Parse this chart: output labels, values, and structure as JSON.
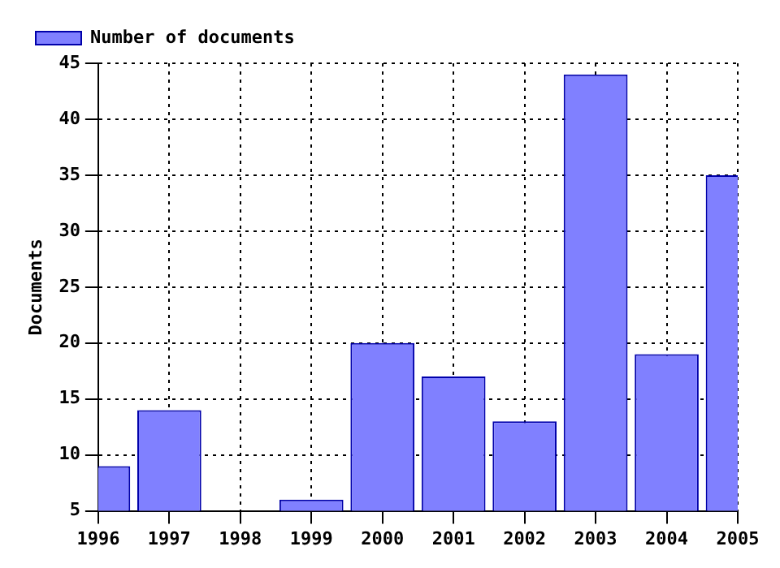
{
  "chart_data": {
    "type": "bar",
    "ylabel": "Documents",
    "x": [
      1996,
      1997,
      1998,
      1999,
      2000,
      2001,
      2002,
      2003,
      2004,
      2005
    ],
    "series": [
      {
        "name": "Number of documents",
        "color": "#8080ff",
        "values": [
          9,
          14,
          null,
          6,
          20,
          17,
          13,
          44,
          19,
          35
        ]
      }
    ],
    "xlim": [
      1996,
      2005
    ],
    "xticks": [
      1996,
      1997,
      1998,
      1999,
      2000,
      2001,
      2002,
      2003,
      2004,
      2005
    ],
    "ylim": [
      5,
      45
    ],
    "yticks": [
      5,
      10,
      15,
      20,
      25,
      30,
      35,
      40,
      45
    ],
    "grid": true,
    "legend": "top left"
  }
}
